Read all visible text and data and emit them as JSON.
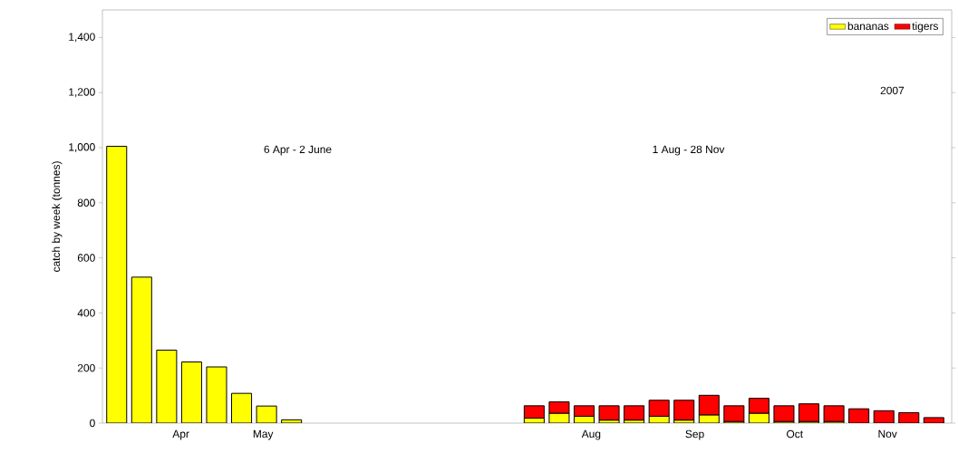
{
  "chart_data": {
    "type": "bar",
    "stacked": true,
    "ylabel": "catch by week (tonnes)",
    "x": [
      "2007-04-06",
      "2007-04-13",
      "2007-04-20",
      "2007-04-27",
      "2007-05-04",
      "2007-05-11",
      "2007-05-18",
      "2007-05-25",
      "2007-08-01",
      "2007-08-08",
      "2007-08-15",
      "2007-08-22",
      "2007-08-29",
      "2007-09-05",
      "2007-09-12",
      "2007-09-19",
      "2007-09-26",
      "2007-10-03",
      "2007-10-10",
      "2007-10-17",
      "2007-10-24",
      "2007-10-31",
      "2007-11-07",
      "2007-11-14",
      "2007-11-21"
    ],
    "series": [
      {
        "name": "bananas",
        "color": "#ffff00",
        "values": [
          1005,
          530,
          265,
          222,
          204,
          108,
          62,
          12,
          18,
          36,
          25,
          11,
          11,
          25,
          11,
          30,
          6,
          36,
          6,
          6,
          6,
          0,
          0,
          0,
          0
        ]
      },
      {
        "name": "tigers",
        "color": "#ff0000",
        "values": [
          null,
          null,
          null,
          null,
          null,
          null,
          null,
          null,
          45,
          41,
          38,
          52,
          52,
          58,
          72,
          71,
          57,
          54,
          57,
          64,
          57,
          52,
          45,
          38,
          20
        ]
      }
    ],
    "xlim": [
      "2007-04-02",
      "2007-11-26"
    ],
    "xticks": [
      {
        "value": "2007-04-24",
        "label": "Apr"
      },
      {
        "value": "2007-05-17",
        "label": "May"
      },
      {
        "value": "2007-08-17",
        "label": "Aug"
      },
      {
        "value": "2007-09-15",
        "label": "Sep"
      },
      {
        "value": "2007-10-13",
        "label": "Oct"
      },
      {
        "value": "2007-11-08",
        "label": "Nov"
      }
    ],
    "ylim": [
      0,
      1500
    ],
    "yticks": [
      0,
      200,
      400,
      600,
      800,
      {
        "value": 1000,
        "label": "1,000"
      },
      {
        "value": 1200,
        "label": "1,200"
      },
      {
        "value": 1400,
        "label": "1,400"
      }
    ],
    "legend": "top right",
    "annotations": [
      "6 Apr - 2 June",
      "1 Aug - 28 Nov",
      "2007"
    ]
  }
}
